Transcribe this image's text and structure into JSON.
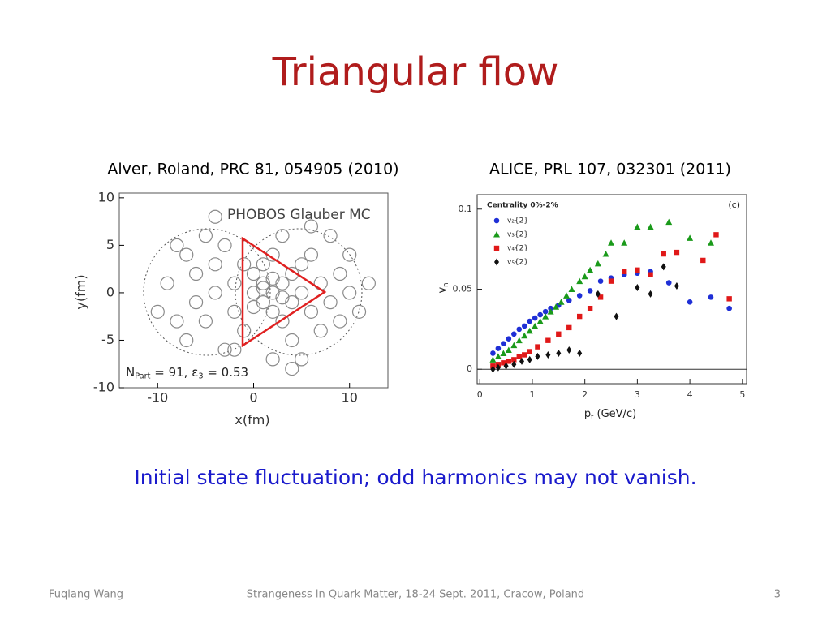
{
  "slide": {
    "title": "Triangular flow",
    "references": [
      "Alver, Roland, PRC 81, 054905 (2010)",
      "ALICE, PRL 107, 032301 (2011)"
    ],
    "caption": "Initial state fluctuation; odd harmonics may not vanish.",
    "footer": {
      "author": "Fuqiang Wang",
      "event": "Strangeness in Quark Matter, 18-24 Sept. 2011, Cracow, Poland",
      "page": "3"
    }
  },
  "chart_data": [
    {
      "type": "scatter",
      "annotations": [
        [
          "PHOBOS Glauber MC"
        ],
        [
          "N",
          "Part",
          " = 91,  ε",
          "3",
          " = 0.53"
        ]
      ],
      "xlabel": [
        "x(fm)"
      ],
      "ylabel": [
        "y(fm)"
      ],
      "xlim": [
        -14,
        14
      ],
      "ylim": [
        -10,
        10.5
      ],
      "xticks": [
        -10,
        0,
        10
      ],
      "yticks": [
        -10,
        -5,
        0,
        5,
        10
      ],
      "series": [
        {
          "color": "#8a8a8a",
          "marker": "ring",
          "x": [
            -9,
            -8,
            -7,
            -7,
            -6,
            -6,
            -5,
            -5,
            -4,
            -4,
            -3,
            -3,
            -2,
            -2,
            -1,
            -1,
            0,
            0,
            1,
            1,
            1,
            2,
            2,
            2,
            3,
            3,
            3,
            4,
            4,
            4,
            5,
            5,
            5,
            6,
            6,
            7,
            7,
            8,
            8,
            9,
            9,
            10,
            10,
            11,
            -10,
            -8,
            -2,
            2,
            6,
            12,
            -4,
            4,
            1,
            3,
            0,
            2
          ],
          "values": [
            1,
            -3,
            4,
            -5,
            2,
            -1,
            6,
            -3,
            0,
            3,
            -6,
            5,
            1,
            -2,
            3,
            -4,
            0,
            2,
            -1,
            1,
            3,
            0,
            -2,
            4,
            1,
            -3,
            6,
            -1,
            2,
            -5,
            0,
            3,
            -7,
            4,
            -2,
            1,
            -4,
            6,
            -1,
            2,
            -3,
            0,
            4,
            -2,
            -2,
            5,
            -6,
            -7,
            7,
            1,
            8,
            -8,
            0.5,
            -0.5,
            -1.5,
            1.5
          ]
        }
      ]
    },
    {
      "type": "scatter",
      "legend_title": "Centrality 0%-2%",
      "panel_label": "(c)",
      "xlabel": [
        "p",
        "t",
        " (GeV/c)"
      ],
      "ylabel": [
        "v",
        "n"
      ],
      "xlim": [
        -0.05,
        5.08
      ],
      "ylim": [
        -0.009,
        0.109
      ],
      "xticks": [
        0,
        1,
        2,
        3,
        4,
        5
      ],
      "yticks": [
        0,
        0.05,
        0.1
      ],
      "series": [
        {
          "name": "v₂{2}",
          "color": "#1f2fd6",
          "marker": "circle",
          "x": [
            0.25,
            0.35,
            0.45,
            0.55,
            0.65,
            0.75,
            0.85,
            0.95,
            1.05,
            1.15,
            1.25,
            1.35,
            1.5,
            1.7,
            1.9,
            2.1,
            2.3,
            2.5,
            2.75,
            3.0,
            3.25,
            3.6,
            4.0,
            4.4,
            4.75
          ],
          "values": [
            0.01,
            0.013,
            0.016,
            0.019,
            0.022,
            0.025,
            0.027,
            0.03,
            0.032,
            0.034,
            0.036,
            0.038,
            0.04,
            0.043,
            0.046,
            0.049,
            0.055,
            0.057,
            0.059,
            0.06,
            0.061,
            0.054,
            0.042,
            0.045,
            0.038
          ]
        },
        {
          "name": "v₃{2}",
          "color": "#1a9a1a",
          "marker": "triangle",
          "x": [
            0.25,
            0.35,
            0.45,
            0.55,
            0.65,
            0.75,
            0.85,
            0.95,
            1.05,
            1.15,
            1.25,
            1.35,
            1.45,
            1.55,
            1.65,
            1.75,
            1.9,
            2.0,
            2.1,
            2.25,
            2.4,
            2.5,
            2.75,
            3.0,
            3.25,
            3.6,
            4.0,
            4.4
          ],
          "values": [
            0.006,
            0.008,
            0.01,
            0.012,
            0.015,
            0.018,
            0.021,
            0.024,
            0.027,
            0.03,
            0.033,
            0.036,
            0.039,
            0.042,
            0.046,
            0.05,
            0.055,
            0.058,
            0.062,
            0.066,
            0.072,
            0.079,
            0.079,
            0.089,
            0.089,
            0.092,
            0.082,
            0.079
          ]
        },
        {
          "name": "v₄{2}",
          "color": "#e01818",
          "marker": "square",
          "x": [
            0.25,
            0.35,
            0.45,
            0.55,
            0.65,
            0.75,
            0.85,
            0.95,
            1.1,
            1.3,
            1.5,
            1.7,
            1.9,
            2.1,
            2.3,
            2.5,
            2.75,
            3.0,
            3.25,
            3.5,
            3.75,
            4.25,
            4.5,
            4.75
          ],
          "values": [
            0.002,
            0.003,
            0.004,
            0.005,
            0.006,
            0.008,
            0.009,
            0.011,
            0.014,
            0.018,
            0.022,
            0.026,
            0.033,
            0.038,
            0.045,
            0.055,
            0.061,
            0.062,
            0.059,
            0.072,
            0.073,
            0.068,
            0.084,
            0.044
          ]
        },
        {
          "name": "v₅{2}",
          "color": "#111111",
          "marker": "diamond",
          "x": [
            0.25,
            0.35,
            0.5,
            0.65,
            0.8,
            0.95,
            1.1,
            1.3,
            1.5,
            1.7,
            1.9,
            2.25,
            2.6,
            3.0,
            3.25,
            3.5,
            3.75
          ],
          "values": [
            0.0,
            0.001,
            0.002,
            0.003,
            0.005,
            0.006,
            0.008,
            0.009,
            0.01,
            0.012,
            0.01,
            0.047,
            0.033,
            0.051,
            0.047,
            0.064,
            0.052
          ]
        }
      ]
    }
  ]
}
